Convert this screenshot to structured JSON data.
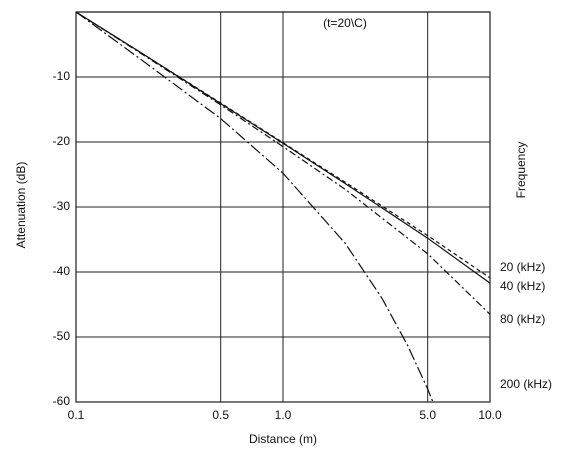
{
  "chart_data": {
    "type": "line",
    "annotation": "(t=20\\C)",
    "x_label": "Distance (m)",
    "y_label": "Attenuation (dB)",
    "legend_title": "Frequency",
    "x": [
      0.1,
      0.2,
      0.5,
      1,
      2,
      5,
      10
    ],
    "series": [
      {
        "name": "20 (kHz)",
        "color": "#111111",
        "dash": "4 3",
        "values": [
          0,
          -6.0,
          -14.0,
          -20.1,
          -26.2,
          -34.4,
          -40.9
        ]
      },
      {
        "name": "40 (kHz)",
        "color": "#111111",
        "dash": "none",
        "values": [
          0,
          -6.0,
          -14.1,
          -20.2,
          -26.4,
          -34.8,
          -41.7
        ]
      },
      {
        "name": "80 (kHz)",
        "color": "#111111",
        "dash": "7 3 2 3",
        "values": [
          0,
          -6.1,
          -14.3,
          -20.7,
          -27.3,
          -37.2,
          -46.5
        ]
      },
      {
        "name": "200 (kHz)",
        "color": "#111111",
        "dash": "12 3 2 3",
        "x": [
          0.1,
          0.2,
          0.5,
          1,
          2,
          3,
          4,
          5,
          5.3
        ],
        "values": [
          0,
          -7.0,
          -16.4,
          -24.8,
          -35.6,
          -44.0,
          -51.3,
          -58.0,
          -60
        ]
      }
    ],
    "xscale": "log",
    "xlim": [
      0.1,
      10
    ],
    "xticks": [
      0.1,
      0.5,
      {
        "value": 1,
        "label": "1.0"
      },
      {
        "value": 5,
        "label": "5.0"
      },
      {
        "value": 10,
        "label": "10.0"
      }
    ],
    "ylim": [
      -60,
      0
    ],
    "yticks": [
      -60,
      -50,
      -40,
      -30,
      -20,
      -10
    ],
    "grid": true
  }
}
